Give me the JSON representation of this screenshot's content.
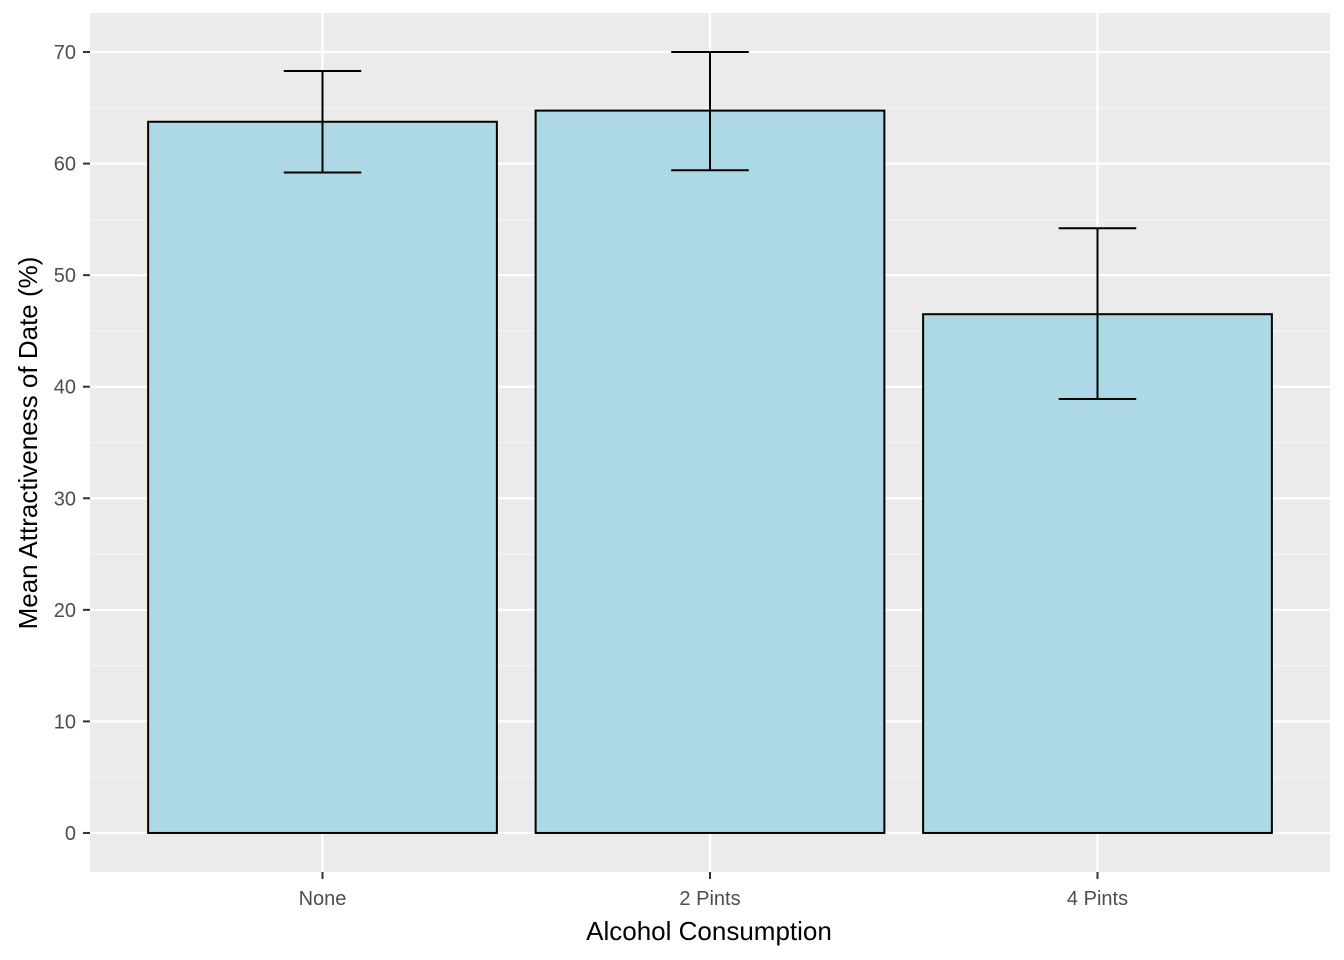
{
  "chart_data": {
    "type": "bar",
    "title": "",
    "xlabel": "Alcohol Consumption",
    "ylabel": "Mean Attractiveness of Date (%)",
    "categories": [
      "None",
      "2 Pints",
      "4 Pints"
    ],
    "values": [
      63.75,
      64.75,
      46.5
    ],
    "error_bars": {
      "lower": [
        59.2,
        59.4,
        38.9
      ],
      "upper": [
        68.3,
        70.0,
        54.2
      ]
    },
    "ylim": [
      -3.5,
      73.5
    ],
    "yticks": [
      0,
      10,
      20,
      30,
      40,
      50,
      60,
      70
    ],
    "ytick_labels": [
      "0",
      "10",
      "20",
      "30",
      "40",
      "50",
      "60",
      "70"
    ],
    "grid": true,
    "legend": "none",
    "colors": {
      "bar_fill": "#add8e6",
      "bar_outline": "#000000",
      "panel_background": "#ebebeb",
      "grid_major": "#ffffff",
      "grid_minor": "#f5f5f5",
      "error_bar": "#000000"
    }
  }
}
